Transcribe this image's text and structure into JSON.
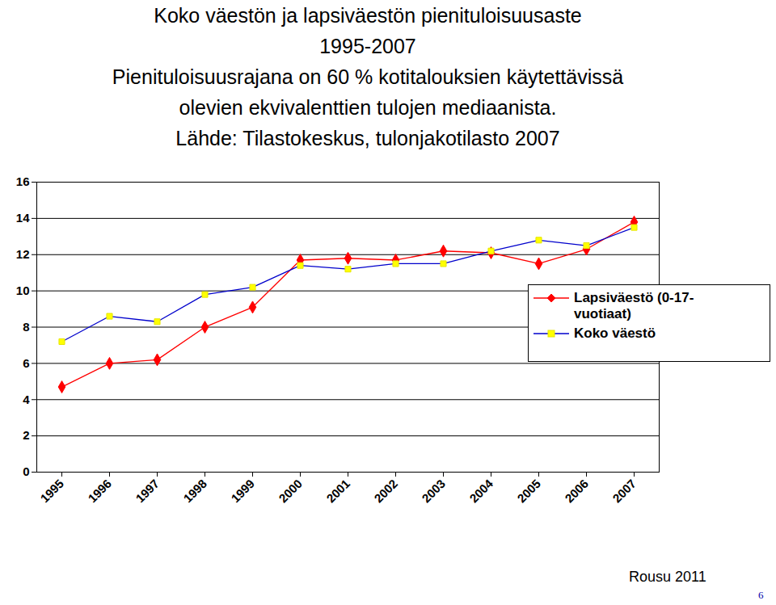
{
  "chart_data": {
    "type": "line",
    "title": [
      "Koko väestön ja lapsiväestön pienituloisuusaste",
      "1995-2007"
    ],
    "subtitle": [
      "Pienituloisuusrajana on 60 % kotitalouksien käytettävissä",
      "olevien ekvivalenttien tulojen mediaanista."
    ],
    "source": "Lähde: Tilastokeskus, tulonjakotilasto 2007",
    "caption": "Rousu 2011",
    "page_number": "6",
    "categories": [
      "1995",
      "1996",
      "1997",
      "1998",
      "1999",
      "2000",
      "2001",
      "2002",
      "2003",
      "2004",
      "2005",
      "2006",
      "2007"
    ],
    "series": [
      {
        "name": "Lapsiväestö (0-17-vuotiaat)",
        "color": "#ff0000",
        "marker": "diamond",
        "values": [
          4.7,
          6.0,
          6.2,
          8.0,
          9.1,
          11.7,
          11.8,
          11.7,
          12.2,
          12.1,
          11.5,
          12.3,
          13.8
        ]
      },
      {
        "name": "Koko väestö",
        "color": "#0000cc",
        "marker": "square",
        "values": [
          7.2,
          8.6,
          8.3,
          9.8,
          10.2,
          11.4,
          11.2,
          11.5,
          11.5,
          12.2,
          12.8,
          12.5,
          13.5
        ]
      }
    ],
    "ylim": [
      0,
      16
    ],
    "yticks": [
      0,
      2,
      4,
      6,
      8,
      10,
      12,
      14,
      16
    ],
    "grid": true,
    "legend": "right"
  }
}
